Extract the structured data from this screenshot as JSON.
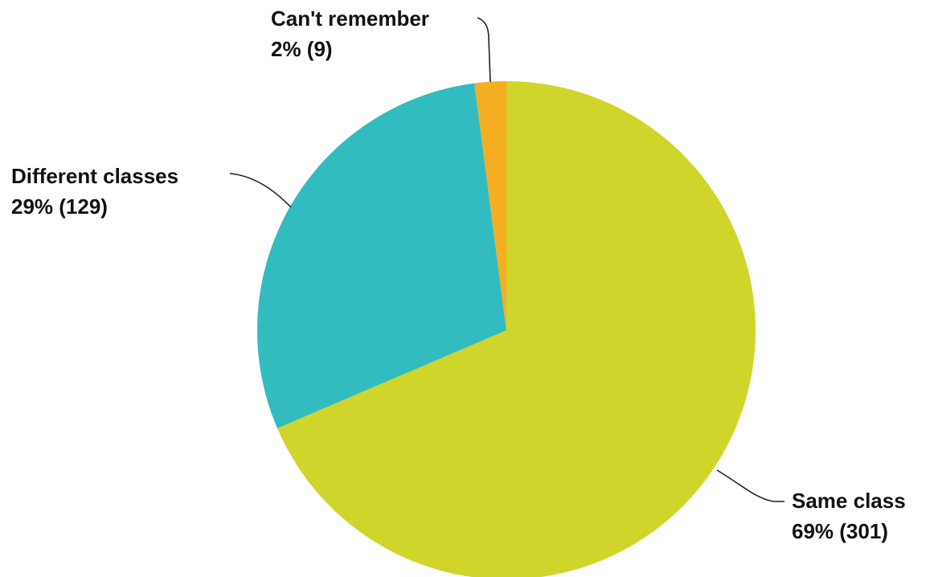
{
  "chart_data": {
    "type": "pie",
    "slices": [
      {
        "label": "Same class",
        "percent_label": "69% (301)",
        "value": 301,
        "color": "#d0d52b"
      },
      {
        "label": "Different classes",
        "percent_label": "29% (129)",
        "value": 129,
        "color": "#33bcbf"
      },
      {
        "label": "Can't remember",
        "percent_label": "2% (9)",
        "value": 9,
        "color": "#f5ae22"
      }
    ],
    "start_angle_deg": 0,
    "direction": "clockwise",
    "legend": "none",
    "data_labels": "outside with leader lines"
  }
}
